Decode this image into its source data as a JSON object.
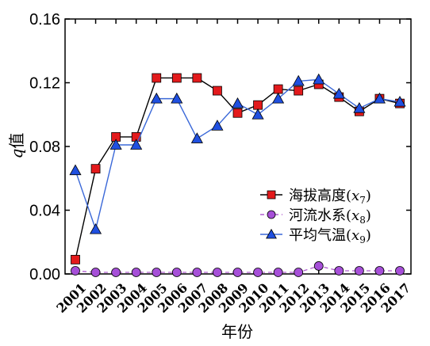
{
  "chart_data": {
    "type": "line",
    "title": "",
    "xlabel": "年份",
    "ylabel_var": "q",
    "ylabel_suffix": "值",
    "ylim": [
      0,
      0.16
    ],
    "y_ticks": [
      "0.00",
      "0.04",
      "0.08",
      "0.12",
      "0.16"
    ],
    "categories": [
      "2001",
      "2002",
      "2003",
      "2004",
      "2005",
      "2006",
      "2007",
      "2008",
      "2009",
      "2010",
      "2011",
      "2012",
      "2013",
      "2014",
      "2015",
      "2016",
      "2017"
    ],
    "series": [
      {
        "name": "海拔高度",
        "var": "x",
        "sub": "7",
        "color": "#000000",
        "marker": "square",
        "marker_fill": "#e31a1c",
        "line_style": "solid",
        "values": [
          0.009,
          0.066,
          0.086,
          0.086,
          0.123,
          0.123,
          0.123,
          0.115,
          0.101,
          0.106,
          0.116,
          0.115,
          0.119,
          0.111,
          0.102,
          0.11,
          0.107
        ]
      },
      {
        "name": "河流水系",
        "var": "x",
        "sub": "8",
        "color": "#b15ecf",
        "marker": "circle",
        "marker_fill": "#a64fd8",
        "line_style": "dashed",
        "values": [
          0.002,
          0.001,
          0.001,
          0.001,
          0.001,
          0.001,
          0.001,
          0.001,
          0.001,
          0.001,
          0.001,
          0.001,
          0.005,
          0.002,
          0.002,
          0.002,
          0.002
        ]
      },
      {
        "name": "平均气温",
        "var": "x",
        "sub": "9",
        "color": "#3a68d8",
        "marker": "triangle",
        "marker_fill": "#1f4fe0",
        "line_style": "solid",
        "values": [
          0.065,
          0.028,
          0.081,
          0.081,
          0.11,
          0.11,
          0.085,
          0.093,
          0.107,
          0.1,
          0.11,
          0.121,
          0.122,
          0.113,
          0.104,
          0.11,
          0.108
        ]
      }
    ],
    "legend_position": "right-middle",
    "grid": false
  }
}
